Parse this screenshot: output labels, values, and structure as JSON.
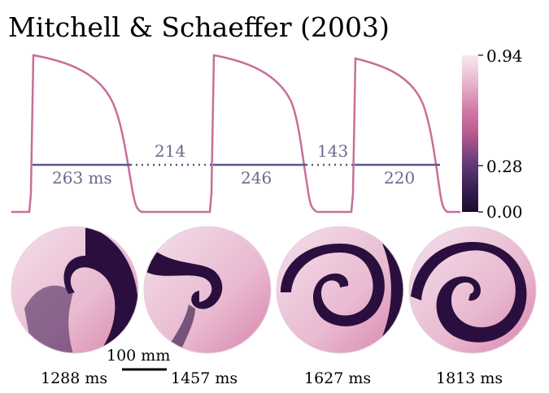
{
  "figure": {
    "title": "Mitchell & Schaeffer (2003)",
    "colors": {
      "trace": "#c86e9a",
      "apd_line": "#5a5788",
      "apd_text": "#6b6a8e",
      "disk_dark": "#2a0f3e",
      "disk_light": "#f2dbe9"
    },
    "trace": {
      "apd_labels": [
        "263 ms",
        "246",
        "220"
      ],
      "di_labels": [
        "214",
        "143"
      ]
    },
    "colorbar": {
      "ticks": [
        "0.94",
        "0.28",
        "0.00"
      ],
      "tick_values": [
        0.94,
        0.28,
        0.0
      ],
      "colors": [
        "#1d0a2e",
        "#4a2b63",
        "#8c4a85",
        "#cc6a98",
        "#e6a9c8",
        "#f6e8f1"
      ]
    },
    "snapshots": [
      {
        "time": "1288 ms"
      },
      {
        "time": "1457 ms"
      },
      {
        "time": "1627 ms"
      },
      {
        "time": "1813 ms"
      }
    ],
    "scalebar": {
      "label": "100 mm"
    }
  },
  "chart_data": {
    "type": "line",
    "title": "Mitchell & Schaeffer (2003)",
    "series": [
      {
        "values": [
          {
            "t": 0,
            "v": 0.0
          },
          {
            "t": 1,
            "v": 0.94
          },
          {
            "t": 3,
            "v": 0.88
          },
          {
            "t": 6,
            "v": 0.7
          },
          {
            "t": 8,
            "v": 0.4
          },
          {
            "t": 9,
            "v": 0.05
          },
          {
            "t": 10,
            "v": 0.0
          }
        ]
      }
    ],
    "annotations": [
      {
        "label": "263 ms",
        "kind": "APD"
      },
      {
        "label": "214",
        "kind": "DI"
      },
      {
        "label": "246",
        "kind": "APD"
      },
      {
        "label": "143",
        "kind": "DI"
      },
      {
        "label": "220",
        "kind": "APD"
      }
    ],
    "threshold": 0.28,
    "ylim": [
      0.0,
      0.94
    ]
  }
}
